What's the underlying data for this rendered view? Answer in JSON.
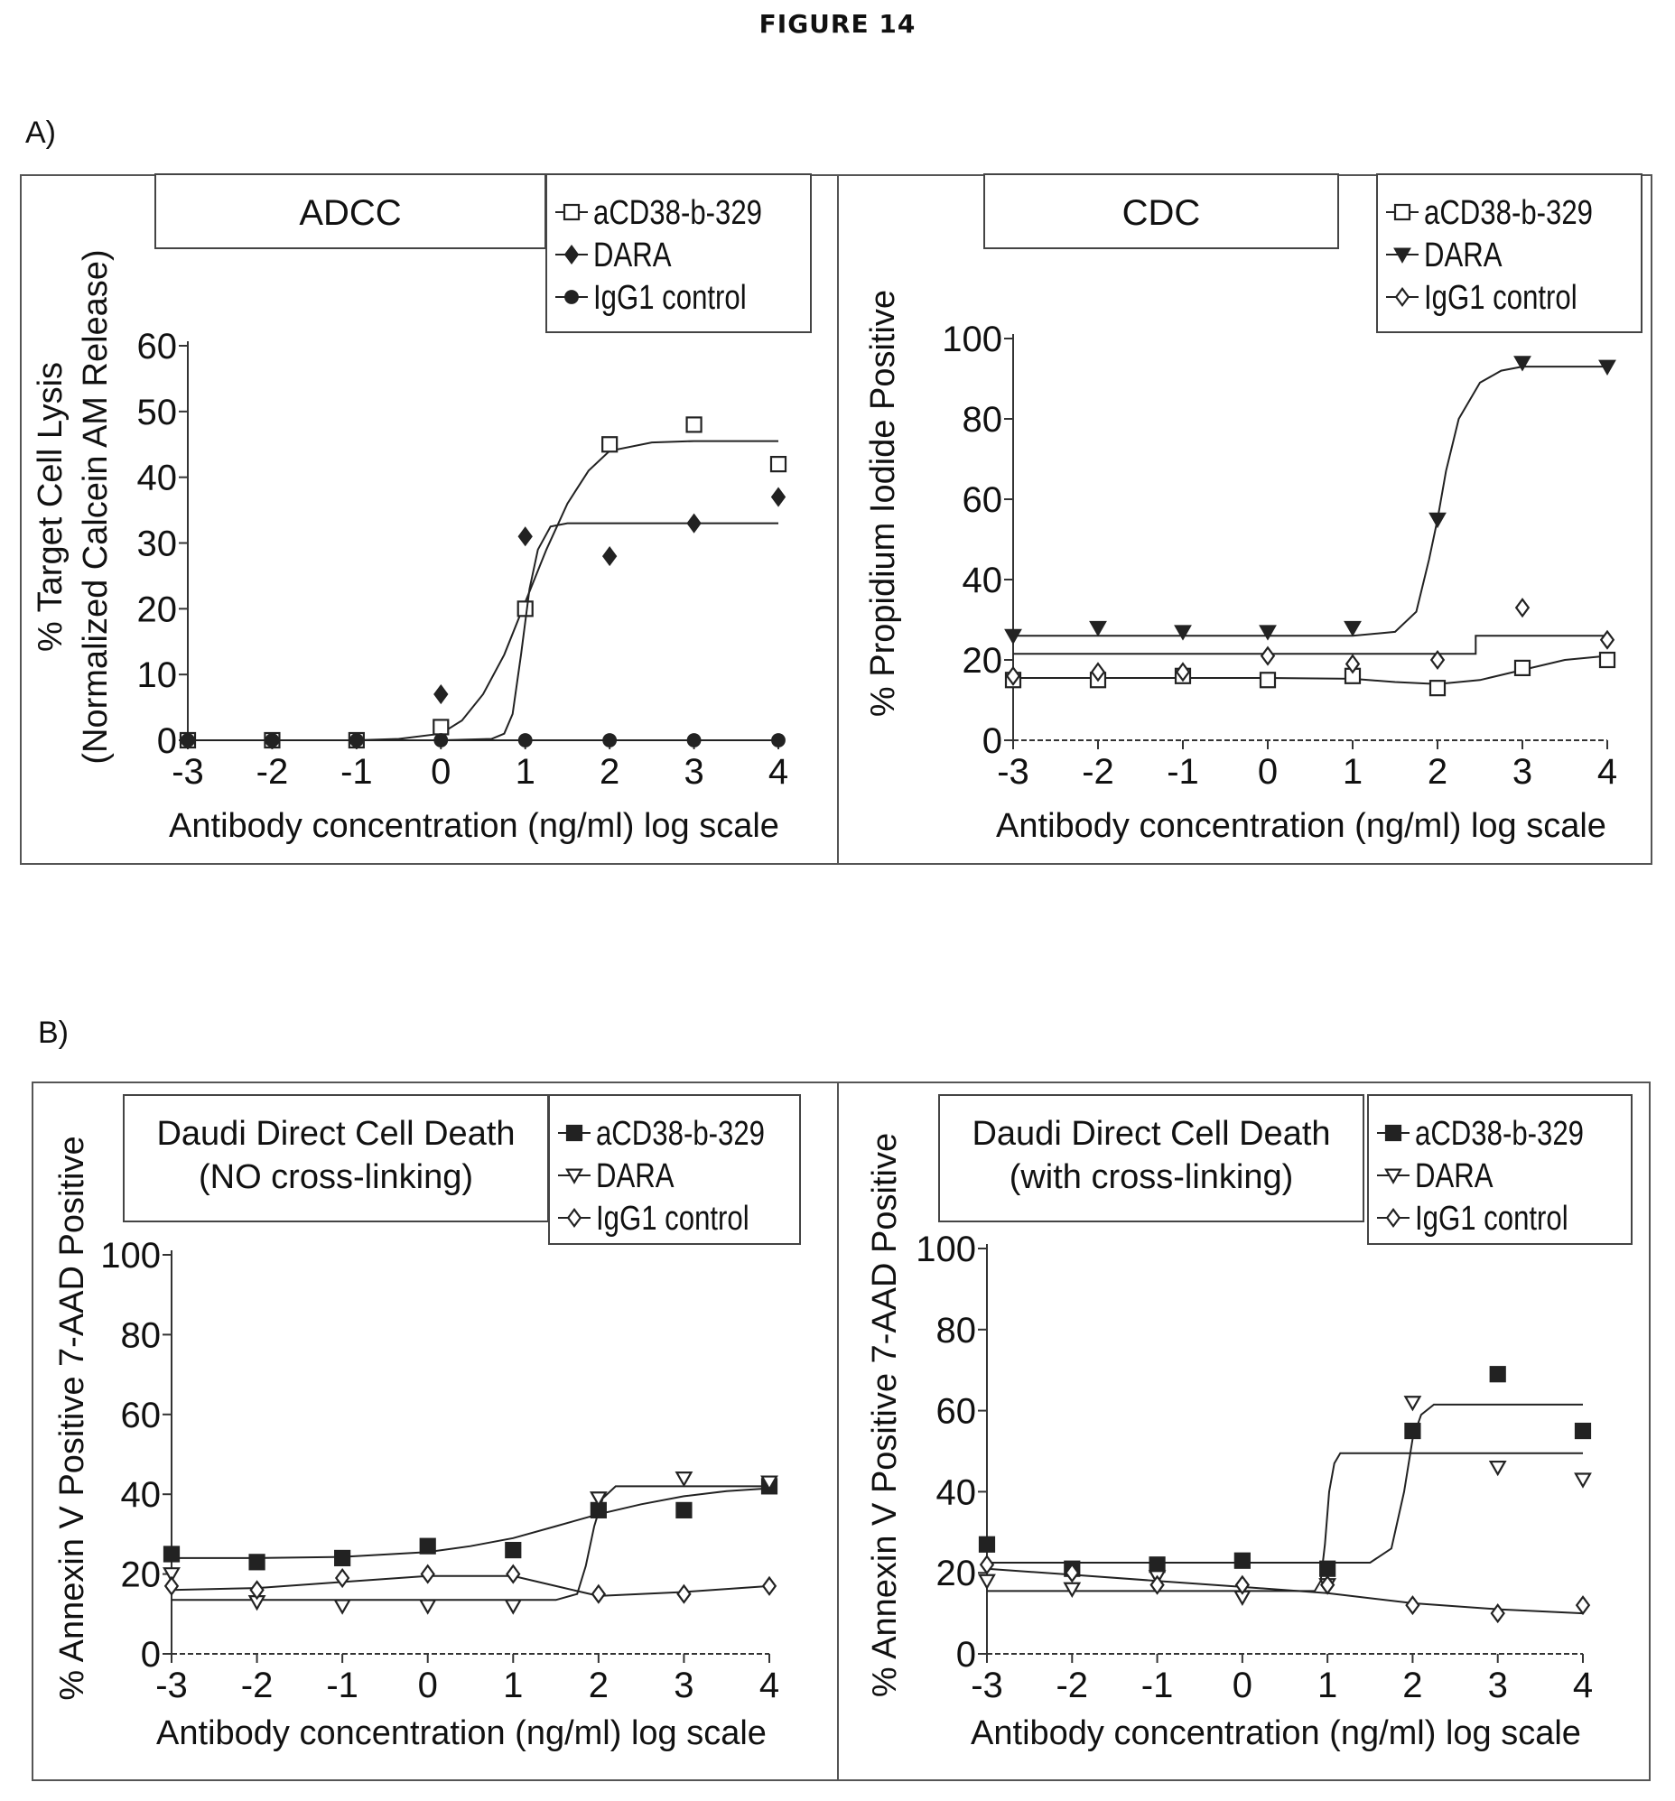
{
  "figure": {
    "title": "FIGURE 14",
    "section_a_label": "A)",
    "section_b_label": "B)"
  },
  "chart_data": [
    {
      "type": "scatter",
      "title": "ADCC",
      "xlabel": "Antibody concentration (ng/ml) log scale",
      "ylabel": "% Target Cell Lysis",
      "ylabel2": "(Normalized Calcein AM Release)",
      "xlim": [
        -3,
        4
      ],
      "ylim": [
        0,
        60
      ],
      "xticks": [
        -3,
        -2,
        -1,
        0,
        1,
        2,
        3,
        4
      ],
      "yticks": [
        0,
        10,
        20,
        30,
        40,
        50,
        60
      ],
      "legend_position": "top-right",
      "series": [
        {
          "name": "aCD38-b-329",
          "marker": "square-open",
          "x": [
            -3,
            -2,
            -1,
            0,
            1,
            2,
            3,
            4
          ],
          "y": [
            0,
            0,
            0,
            2,
            20,
            45,
            48,
            42
          ],
          "fit_x": [
            -3,
            -2,
            -1,
            -0.5,
            0,
            0.25,
            0.5,
            0.75,
            1,
            1.25,
            1.5,
            1.75,
            2,
            2.5,
            3,
            4
          ],
          "fit_y": [
            0,
            0,
            0,
            0.2,
            1,
            3,
            7,
            13,
            21,
            29,
            36,
            41,
            44,
            45.3,
            45.5,
            45.5
          ]
        },
        {
          "name": "DARA",
          "marker": "diamond-filled",
          "x": [
            0,
            1,
            2,
            3,
            4
          ],
          "y": [
            7,
            31,
            28,
            33,
            37
          ],
          "fit_x": [
            -3,
            0,
            0.6,
            0.75,
            0.85,
            0.95,
            1.05,
            1.15,
            1.3,
            1.5,
            4
          ],
          "fit_y": [
            0,
            0,
            0.2,
            1,
            4,
            13,
            23,
            29,
            32.5,
            33,
            33
          ]
        },
        {
          "name": "IgG1 control",
          "marker": "circle-filled",
          "x": [
            -3,
            -2,
            -1,
            0,
            1,
            2,
            3,
            4
          ],
          "y": [
            0,
            0,
            0,
            0,
            0,
            0,
            0,
            0
          ],
          "fit_x": [
            -3,
            4
          ],
          "fit_y": [
            0,
            0
          ]
        }
      ]
    },
    {
      "type": "scatter",
      "title": "CDC",
      "xlabel": "Antibody concentration (ng/ml) log scale",
      "ylabel": "% Propidium Iodide Positive",
      "xlim": [
        -3,
        4
      ],
      "ylim": [
        0,
        100
      ],
      "xticks": [
        -3,
        -2,
        -1,
        0,
        1,
        2,
        3,
        4
      ],
      "yticks": [
        0,
        20,
        40,
        60,
        80,
        100
      ],
      "legend_position": "top-right",
      "series": [
        {
          "name": "aCD38-b-329",
          "marker": "square-open",
          "x": [
            -3,
            -2,
            -1,
            0,
            1,
            2,
            3,
            4
          ],
          "y": [
            15,
            15,
            16,
            15,
            16,
            13,
            18,
            20
          ],
          "fit_x": [
            -3,
            -2,
            -1,
            0,
            1,
            1.5,
            2,
            2.5,
            3,
            3.5,
            4
          ],
          "fit_y": [
            15.5,
            15.5,
            15.5,
            15.5,
            15.3,
            14.5,
            14,
            15,
            17.5,
            20,
            21
          ]
        },
        {
          "name": "DARA",
          "marker": "triangle-down-filled",
          "x": [
            -3,
            -2,
            -1,
            0,
            1,
            2,
            3,
            4
          ],
          "y": [
            26,
            28,
            27,
            27,
            28,
            55,
            94,
            93
          ],
          "fit_x": [
            -3,
            1,
            1.5,
            1.75,
            1.9,
            2,
            2.1,
            2.25,
            2.5,
            2.75,
            3,
            4
          ],
          "fit_y": [
            26,
            26,
            27,
            32,
            45,
            55,
            67,
            80,
            89,
            92,
            93,
            93
          ]
        },
        {
          "name": "IgG1 control",
          "marker": "diamond-open",
          "x": [
            -3,
            -2,
            -1,
            0,
            1,
            2,
            3,
            4
          ],
          "y": [
            16,
            17,
            17,
            21,
            19,
            20,
            33,
            25
          ],
          "fit_x": [
            -3,
            2.45,
            2.45,
            4
          ],
          "fit_y": [
            21.5,
            21.5,
            26,
            26
          ]
        }
      ]
    },
    {
      "type": "scatter",
      "title": "Daudi Direct Cell Death",
      "subtitle": "(NO cross-linking)",
      "xlabel": "Antibody concentration (ng/ml) log scale",
      "ylabel": "% Annexin V Positive 7-AAD Positive",
      "xlim": [
        -3,
        4
      ],
      "ylim": [
        0,
        100
      ],
      "xticks": [
        -3,
        -2,
        -1,
        0,
        1,
        2,
        3,
        4
      ],
      "yticks": [
        0,
        20,
        40,
        60,
        80,
        100
      ],
      "legend_position": "top-right",
      "series": [
        {
          "name": "aCD38-b-329",
          "marker": "square-filled",
          "x": [
            -3,
            -2,
            -1,
            0,
            1,
            2,
            3,
            4
          ],
          "y": [
            25,
            23,
            24,
            27,
            26,
            36,
            36,
            42
          ],
          "fit_x": [
            -3,
            -2,
            -1,
            0,
            0.5,
            1,
            1.5,
            2,
            2.5,
            3,
            3.5,
            4
          ],
          "fit_y": [
            24,
            24,
            24.3,
            25.5,
            27,
            29,
            32,
            35,
            37.5,
            39.5,
            40.8,
            41.5
          ]
        },
        {
          "name": "DARA",
          "marker": "triangle-down-open",
          "x": [
            -3,
            -2,
            -1,
            0,
            1,
            2,
            3,
            4
          ],
          "y": [
            20,
            13,
            12,
            12,
            12,
            39,
            44,
            43
          ],
          "fit_x": [
            -3,
            1.5,
            1.75,
            1.85,
            1.95,
            2.05,
            2.2,
            4
          ],
          "fit_y": [
            13.5,
            13.5,
            15,
            22,
            32,
            39,
            42,
            42
          ]
        },
        {
          "name": "IgG1 control",
          "marker": "diamond-open",
          "x": [
            -3,
            -2,
            -1,
            0,
            1,
            2,
            3,
            4
          ],
          "y": [
            17,
            16,
            19,
            20,
            20,
            15,
            15,
            17
          ],
          "fit_x": [
            -3,
            -2,
            -1,
            0,
            1,
            1.5,
            2,
            3,
            4
          ],
          "fit_y": [
            16,
            16.5,
            18,
            19.5,
            19.5,
            17,
            14.5,
            15.5,
            17
          ]
        }
      ]
    },
    {
      "type": "scatter",
      "title": "Daudi Direct Cell Death",
      "subtitle": "(with cross-linking)",
      "xlabel": "Antibody concentration (ng/ml) log scale",
      "ylabel": "% Annexin V Positive 7-AAD Positive",
      "xlim": [
        -3,
        4
      ],
      "ylim": [
        0,
        100
      ],
      "xticks": [
        -3,
        -2,
        -1,
        0,
        1,
        2,
        3,
        4
      ],
      "yticks": [
        0,
        20,
        40,
        60,
        80,
        100
      ],
      "legend_position": "top-right",
      "series": [
        {
          "name": "aCD38-b-329",
          "marker": "square-filled",
          "x": [
            -3,
            -2,
            -1,
            0,
            1,
            2,
            3,
            4
          ],
          "y": [
            27,
            21,
            22,
            23,
            21,
            55,
            69,
            55
          ],
          "fit_x": [
            -3,
            1.5,
            1.75,
            1.9,
            2,
            2.1,
            2.25,
            4
          ],
          "fit_y": [
            22.5,
            22.5,
            26,
            40,
            53,
            59,
            61.5,
            61.5
          ]
        },
        {
          "name": "DARA",
          "marker": "triangle-down-open",
          "x": [
            -3,
            -2,
            -1,
            0,
            1,
            2,
            3,
            4
          ],
          "y": [
            18,
            16,
            19,
            14,
            17,
            62,
            46,
            43
          ],
          "fit_x": [
            -3,
            0.85,
            0.92,
            0.97,
            1.02,
            1.08,
            1.15,
            4
          ],
          "fit_y": [
            15.5,
            15.5,
            18,
            27,
            40,
            47,
            49.5,
            49.5
          ]
        },
        {
          "name": "IgG1 control",
          "marker": "diamond-open",
          "x": [
            -3,
            -2,
            -1,
            0,
            1,
            2,
            3,
            4
          ],
          "y": [
            22,
            20,
            17,
            17,
            17,
            12,
            10,
            12
          ],
          "fit_x": [
            -3,
            -2,
            -1,
            0,
            1,
            2,
            3,
            4
          ],
          "fit_y": [
            21,
            19.5,
            18,
            16.5,
            15,
            12.5,
            11,
            10
          ]
        }
      ]
    }
  ]
}
